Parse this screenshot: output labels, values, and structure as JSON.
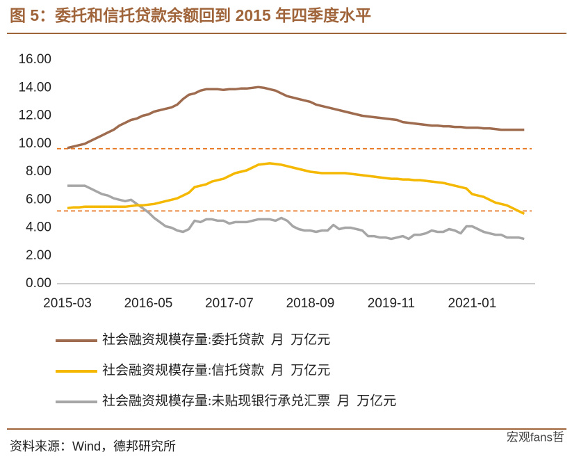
{
  "chart_data": {
    "type": "line",
    "title": "图 5：委托和信托贷款余额回到 2015 年四季度水平",
    "source": "资料来源：Wind，德邦研究所",
    "watermark": "宏观fans哲",
    "categories": [
      "2015-03",
      null,
      null,
      null,
      null,
      null,
      null,
      null,
      null,
      null,
      null,
      null,
      null,
      null,
      "2016-05",
      null,
      null,
      null,
      null,
      null,
      null,
      null,
      null,
      null,
      null,
      null,
      null,
      null,
      "2017-07",
      null,
      null,
      null,
      null,
      null,
      null,
      null,
      null,
      null,
      null,
      null,
      null,
      null,
      "2018-09",
      null,
      null,
      null,
      null,
      null,
      null,
      null,
      null,
      null,
      null,
      null,
      null,
      null,
      "2019-11",
      null,
      null,
      null,
      null,
      null,
      null,
      null,
      null,
      null,
      null,
      null,
      null,
      null,
      "2021-01",
      null,
      null,
      null,
      null,
      null,
      null,
      null,
      null,
      null
    ],
    "series": [
      {
        "name": "社会融资规模存量:委托贷款  月  万亿元",
        "color": "#9e6b4e",
        "values": [
          9.7,
          9.8,
          9.9,
          10.0,
          10.2,
          10.4,
          10.6,
          10.8,
          11.0,
          11.3,
          11.5,
          11.7,
          11.8,
          12.0,
          12.1,
          12.3,
          12.4,
          12.5,
          12.6,
          12.8,
          13.2,
          13.5,
          13.6,
          13.8,
          13.9,
          13.9,
          13.9,
          13.85,
          13.9,
          13.9,
          13.95,
          13.95,
          14.0,
          14.05,
          14.0,
          13.9,
          13.8,
          13.6,
          13.4,
          13.3,
          13.2,
          13.1,
          13.0,
          12.8,
          12.7,
          12.6,
          12.5,
          12.4,
          12.3,
          12.2,
          12.1,
          12.0,
          11.95,
          11.9,
          11.85,
          11.8,
          11.75,
          11.7,
          11.55,
          11.5,
          11.45,
          11.4,
          11.35,
          11.3,
          11.3,
          11.25,
          11.25,
          11.2,
          11.2,
          11.15,
          11.15,
          11.15,
          11.1,
          11.1,
          11.05,
          11.0,
          11.0,
          11.0,
          11.0,
          11.0
        ]
      },
      {
        "name": "社会融资规模存量:信托贷款  月  万亿元",
        "color": "#f5b800",
        "values": [
          5.4,
          5.45,
          5.45,
          5.5,
          5.5,
          5.5,
          5.5,
          5.5,
          5.5,
          5.5,
          5.5,
          5.55,
          5.6,
          5.6,
          5.65,
          5.7,
          5.8,
          5.9,
          6.0,
          6.1,
          6.3,
          6.5,
          6.9,
          7.0,
          7.1,
          7.3,
          7.4,
          7.5,
          7.7,
          7.9,
          8.0,
          8.1,
          8.3,
          8.5,
          8.55,
          8.6,
          8.55,
          8.5,
          8.4,
          8.3,
          8.2,
          8.1,
          8.0,
          7.95,
          7.9,
          7.9,
          7.9,
          7.9,
          7.9,
          7.85,
          7.8,
          7.75,
          7.7,
          7.65,
          7.6,
          7.55,
          7.5,
          7.5,
          7.45,
          7.45,
          7.4,
          7.4,
          7.35,
          7.3,
          7.25,
          7.2,
          7.1,
          7.0,
          6.9,
          6.8,
          6.4,
          6.3,
          6.2,
          6.0,
          5.8,
          5.7,
          5.6,
          5.4,
          5.2,
          5.0
        ]
      },
      {
        "name": "社会融资规模存量:未贴现银行承兑汇票  月  万亿元",
        "color": "#a6a6a6",
        "values": [
          7.0,
          7.0,
          7.0,
          7.0,
          6.8,
          6.6,
          6.4,
          6.3,
          6.1,
          6.0,
          5.9,
          6.0,
          5.7,
          5.4,
          5.1,
          4.7,
          4.4,
          4.1,
          4.0,
          3.8,
          3.7,
          3.9,
          4.5,
          4.4,
          4.6,
          4.6,
          4.5,
          4.5,
          4.3,
          4.4,
          4.4,
          4.4,
          4.5,
          4.6,
          4.6,
          4.6,
          4.5,
          4.7,
          4.5,
          4.1,
          3.9,
          3.8,
          3.8,
          3.7,
          3.8,
          3.8,
          4.2,
          3.9,
          4.0,
          4.0,
          3.9,
          3.8,
          3.4,
          3.4,
          3.3,
          3.3,
          3.2,
          3.3,
          3.4,
          3.2,
          3.5,
          3.5,
          3.6,
          3.8,
          3.7,
          3.7,
          3.9,
          3.8,
          3.6,
          4.1,
          4.1,
          3.9,
          3.7,
          3.6,
          3.5,
          3.5,
          3.3,
          3.3,
          3.3,
          3.2
        ]
      }
    ],
    "reference_lines": [
      {
        "value": 9.65,
        "color": "#e87722"
      },
      {
        "value": 5.2,
        "color": "#e87722"
      }
    ],
    "ylim": [
      0,
      16
    ],
    "yticks": [
      {
        "value": 0,
        "label": "0.00"
      },
      {
        "value": 2,
        "label": "2.00"
      },
      {
        "value": 4,
        "label": "4.00"
      },
      {
        "value": 6,
        "label": "6.00"
      },
      {
        "value": 8,
        "label": "8.00"
      },
      {
        "value": 10,
        "label": "10.00"
      },
      {
        "value": 12,
        "label": "12.00"
      },
      {
        "value": 14,
        "label": "14.00"
      },
      {
        "value": 16,
        "label": "16.00"
      }
    ]
  }
}
